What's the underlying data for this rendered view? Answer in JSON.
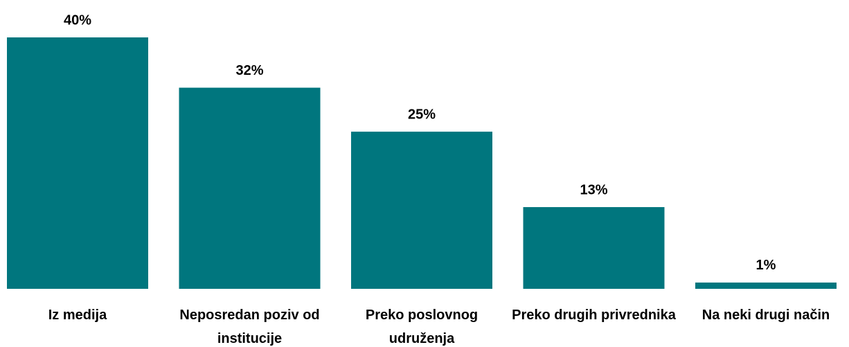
{
  "chart_data": {
    "type": "bar",
    "categories": [
      "Iz medija",
      "Neposredan poziv od institucije",
      "Preko poslovnog udruženja",
      "Preko drugih privrednika",
      "Na neki drugi način"
    ],
    "values": [
      40,
      32,
      25,
      13,
      1
    ],
    "value_labels": [
      "40%",
      "32%",
      "25%",
      "13%",
      "1%"
    ],
    "color": "#00767e"
  }
}
